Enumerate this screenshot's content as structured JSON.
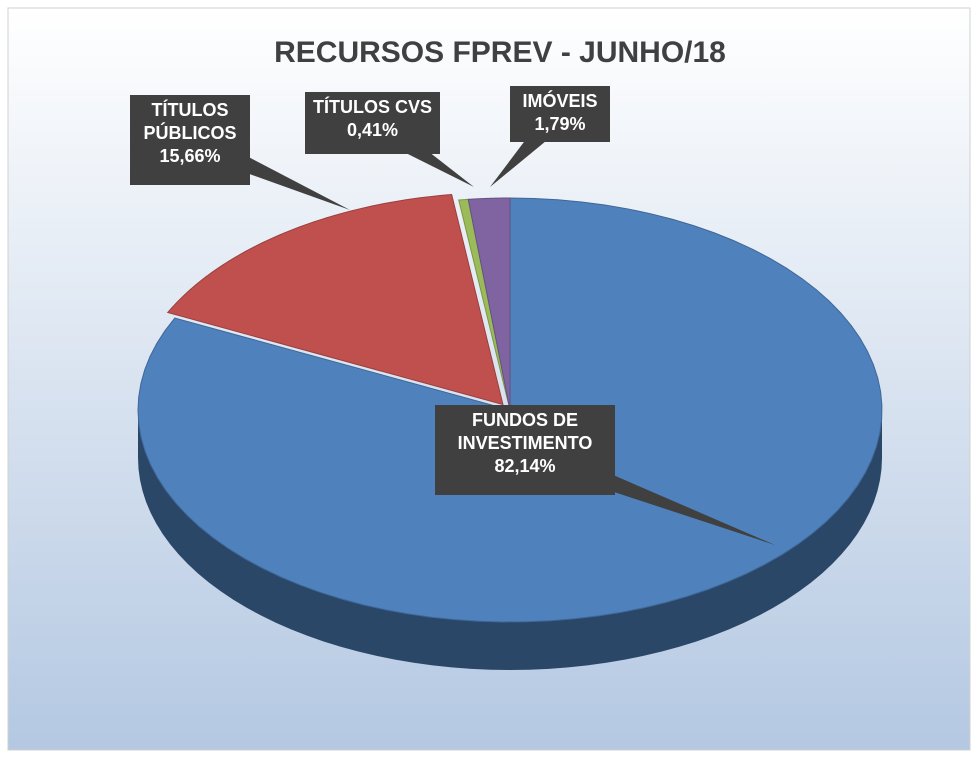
{
  "chart_data": {
    "type": "pie3d",
    "title": "RECURSOS FPREV - JUNHO/18",
    "categories": [
      "FUNDOS DE INVESTIMENTO",
      "TÍTULOS PÚBLICOS",
      "TÍTULOS CVS",
      "IMÓVEIS"
    ],
    "values": [
      82.14,
      15.66,
      0.41,
      1.79
    ],
    "value_labels": [
      "82,14%",
      "15,66%",
      "0,41%",
      "1,79%"
    ],
    "colors": [
      "#4f81bd",
      "#c0504d",
      "#9bbb59",
      "#8064a2"
    ]
  }
}
